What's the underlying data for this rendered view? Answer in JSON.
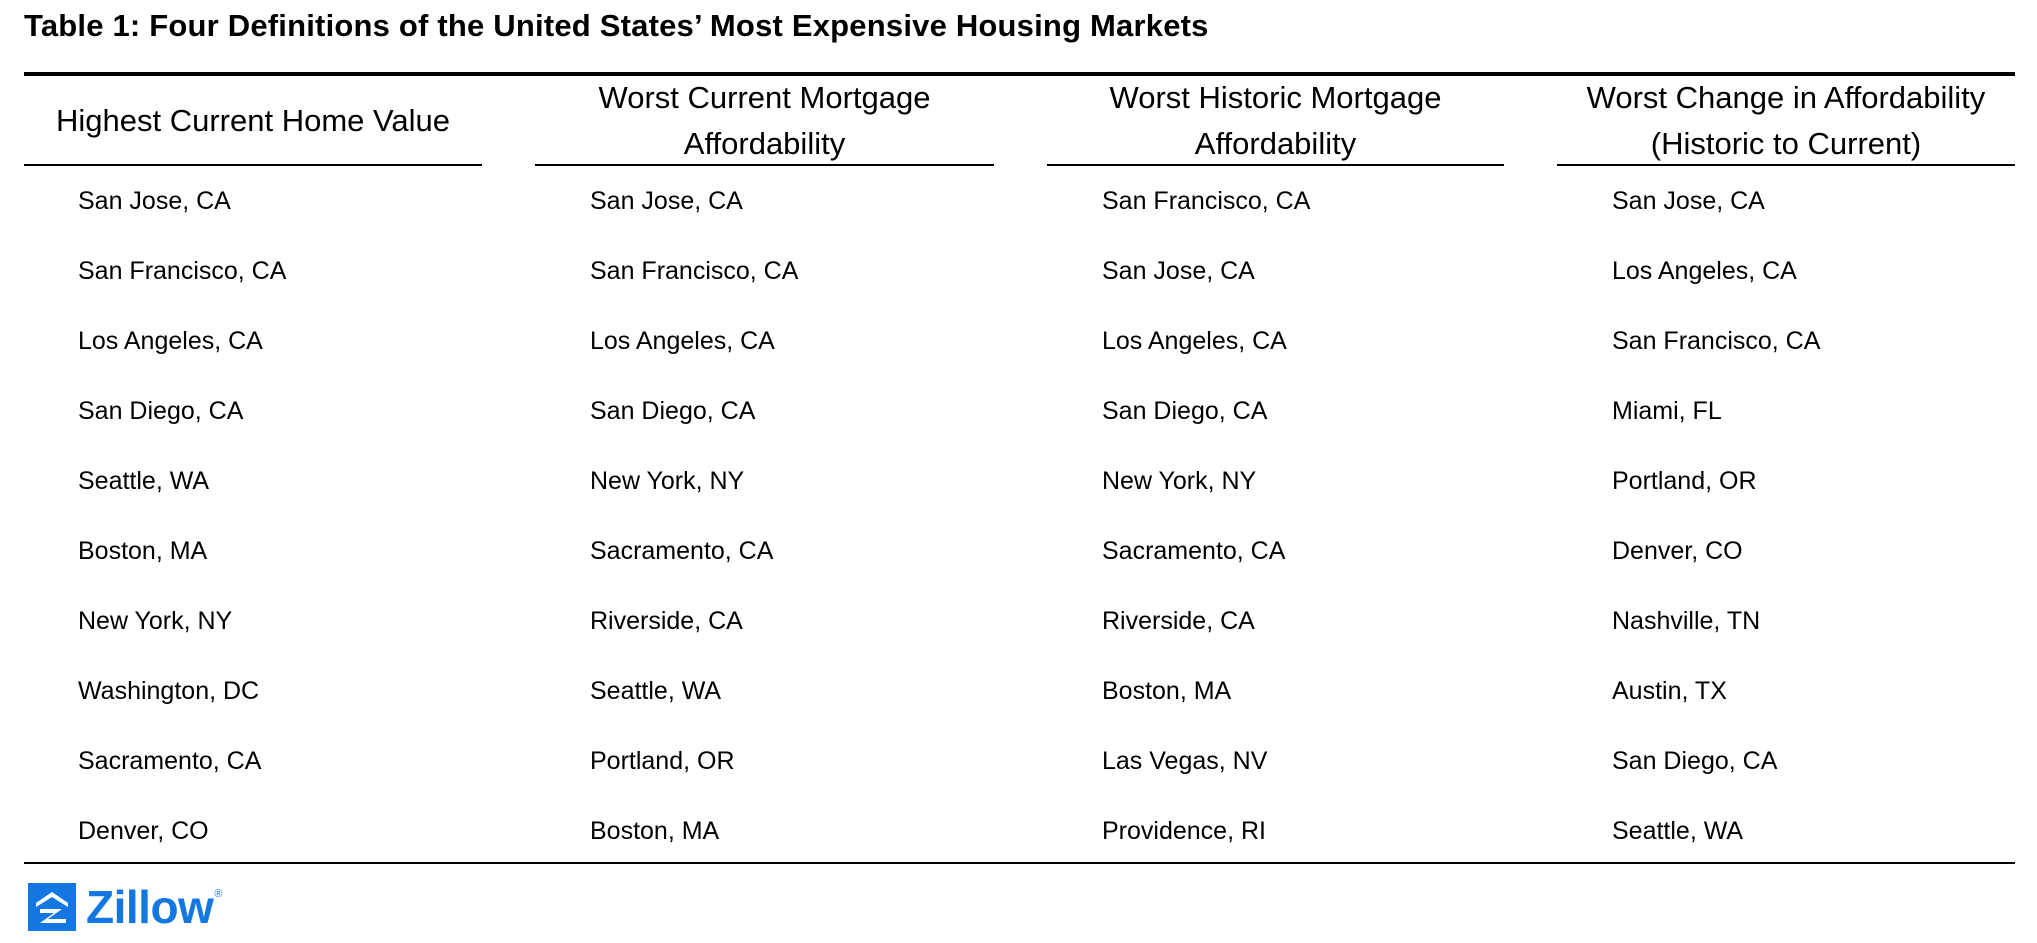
{
  "title": "Table 1: Four Definitions of the United States’ Most Expensive Housing Markets",
  "columns": [
    {
      "header_lines": [
        "Highest Current Home Value"
      ],
      "cells": [
        "San Jose, CA",
        "San Francisco, CA",
        "Los Angeles, CA",
        "San Diego, CA",
        "Seattle, WA",
        "Boston, MA",
        "New York, NY",
        "Washington, DC",
        "Sacramento, CA",
        "Denver, CO"
      ]
    },
    {
      "header_lines": [
        "Worst Current Mortgage",
        "Affordability"
      ],
      "cells": [
        "San Jose, CA",
        "San Francisco, CA",
        "Los Angeles, CA",
        "San Diego, CA",
        "New York, NY",
        "Sacramento, CA",
        "Riverside, CA",
        "Seattle, WA",
        "Portland, OR",
        "Boston, MA"
      ]
    },
    {
      "header_lines": [
        "Worst Historic Mortgage",
        "Affordability"
      ],
      "cells": [
        "San Francisco, CA",
        "San Jose, CA",
        "Los Angeles, CA",
        "San Diego, CA",
        "New York, NY",
        "Sacramento, CA",
        "Riverside, CA",
        "Boston, MA",
        "Las Vegas, NV",
        "Providence, RI"
      ]
    },
    {
      "header_lines": [
        "Worst Change in Affordability",
        "(Historic to Current)"
      ],
      "cells": [
        "San Jose, CA",
        "Los Angeles, CA",
        "San Francisco, CA",
        "Miami, FL",
        "Portland, OR",
        "Denver, CO",
        "Nashville, TN",
        "Austin, TX",
        "San Diego, CA",
        "Seattle, WA"
      ]
    }
  ],
  "logo": {
    "text": "Zillow",
    "registered_mark": "®",
    "brand_color": "#1277e1",
    "icon": "zillow-z-icon"
  }
}
